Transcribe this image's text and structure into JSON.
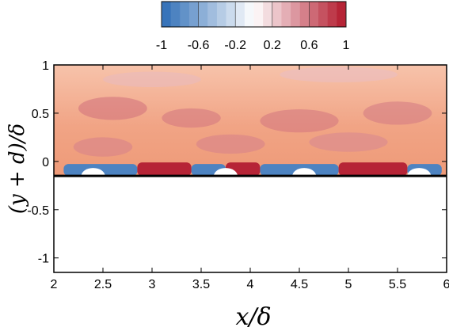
{
  "chart_data": {
    "type": "heatmap",
    "xlabel": "x/δ",
    "ylabel": "(y + d)/δ",
    "xlim": [
      2,
      6
    ],
    "ylim": [
      -1.15,
      1
    ],
    "x_ticks": [
      2,
      2.5,
      3,
      3.5,
      4,
      4.5,
      5,
      5.5,
      6
    ],
    "x_tick_labels": [
      "2",
      "2.5",
      "3",
      "3.5",
      "4",
      "4.5",
      "5",
      "5.5",
      "6"
    ],
    "y_ticks": [
      1,
      0.5,
      0,
      -0.5,
      -1
    ],
    "y_tick_labels": [
      "1",
      "0.5",
      "0",
      "-0.5",
      "-1"
    ],
    "wall_y": -0.15,
    "field_top_y": 1,
    "colorbar": {
      "range": [
        -1,
        1
      ],
      "tick_labels": [
        "-1",
        "-0.6",
        "-0.2",
        "0.2",
        "0.6",
        "1"
      ],
      "tick_values": [
        -1,
        -0.6,
        -0.2,
        0.2,
        0.6,
        1
      ],
      "colors": [
        "#2e6db6",
        "#ffffff",
        "#b2182b"
      ],
      "levels": 20
    },
    "field_summary": {
      "outer_region_value": 0.45,
      "near_wall_positive_value": 0.95,
      "near_wall_negative_value": -0.85
    },
    "near_wall_red_patches_x": [
      [
        2.85,
        3.4
      ],
      [
        3.75,
        4.1
      ],
      [
        4.9,
        5.6
      ]
    ],
    "near_wall_blue_patches_x": [
      [
        2.1,
        2.85
      ],
      [
        3.4,
        3.75
      ],
      [
        4.1,
        4.9
      ],
      [
        5.6,
        5.95
      ]
    ],
    "roughness_elements_x": [
      2.4,
      3.75,
      4.55,
      5.72
    ]
  }
}
